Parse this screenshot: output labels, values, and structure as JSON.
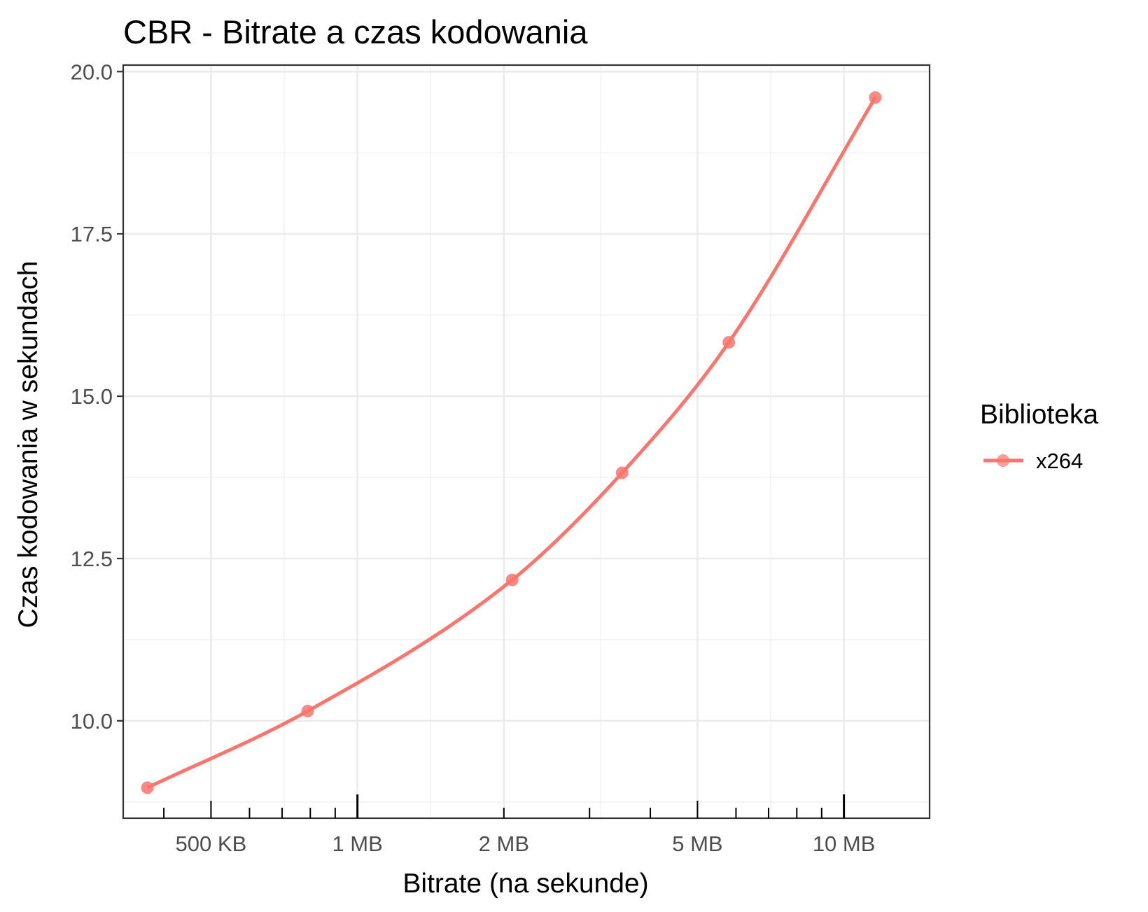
{
  "chart_data": {
    "type": "line",
    "title": "CBR - Bitrate a czas kodowania",
    "xlabel": "Bitrate (na sekunde)",
    "ylabel": "Czas kodowania w sekundach",
    "x_scale": "log10",
    "x_unit": "bytes per second",
    "xlim": [
      330000,
      15000000
    ],
    "ylim": [
      8.5,
      20.1
    ],
    "x_ticks": [
      {
        "value": 500000,
        "label": "500 KB"
      },
      {
        "value": 1000000,
        "label": "1 MB"
      },
      {
        "value": 2000000,
        "label": "2 MB"
      },
      {
        "value": 5000000,
        "label": "5 MB"
      },
      {
        "value": 10000000,
        "label": "10 MB"
      }
    ],
    "y_ticks": [
      {
        "value": 10.0,
        "label": "10.0"
      },
      {
        "value": 12.5,
        "label": "12.5"
      },
      {
        "value": 15.0,
        "label": "15.0"
      },
      {
        "value": 17.5,
        "label": "17.5"
      },
      {
        "value": 20.0,
        "label": "20.0"
      }
    ],
    "grid": true,
    "legend": {
      "title": "Biblioteka",
      "position": "right"
    },
    "series": [
      {
        "name": "x264",
        "color": "#f8766d",
        "x": [
          370000,
          790000,
          2080000,
          3500000,
          5800000,
          11600000
        ],
        "y": [
          8.97,
          10.15,
          12.17,
          13.82,
          15.83,
          19.6
        ]
      }
    ]
  }
}
